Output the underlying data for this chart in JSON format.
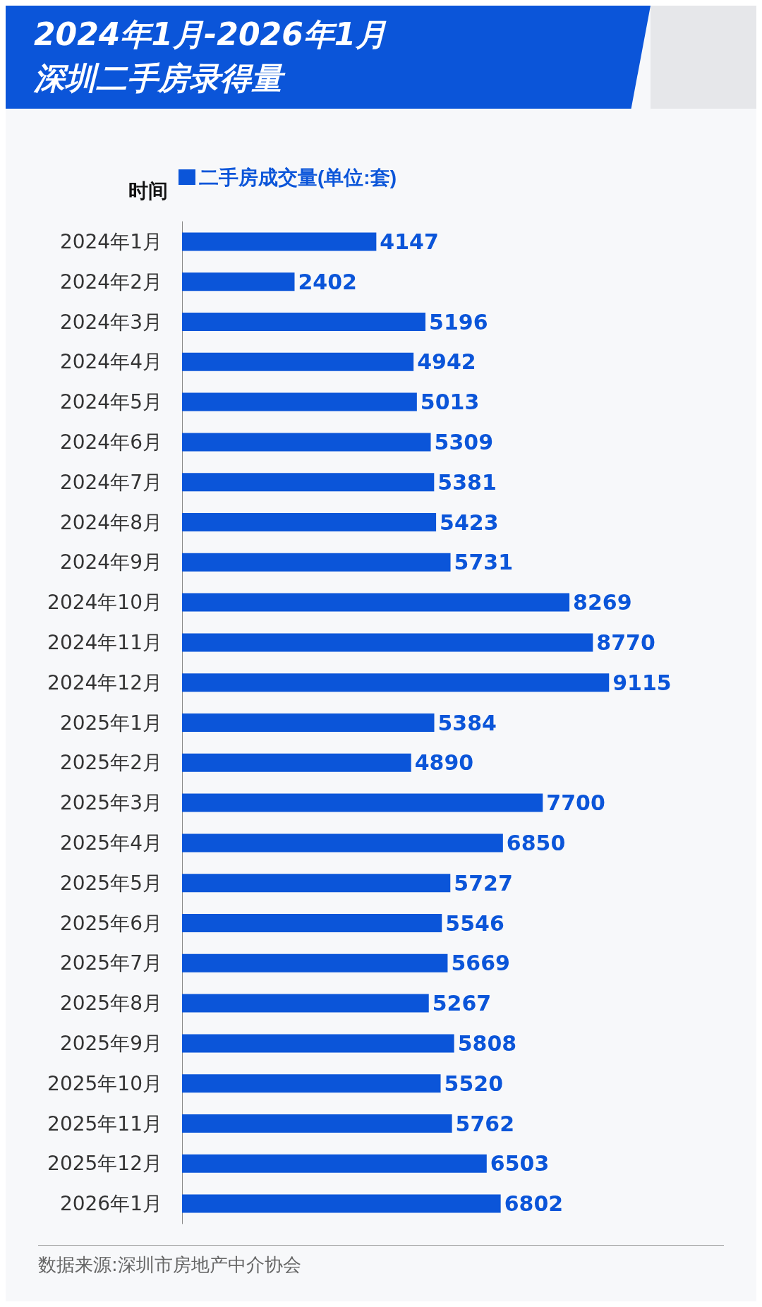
{
  "chart_data": {
    "type": "bar",
    "orientation": "horizontal",
    "title": "2024年1月-2026年1月",
    "subtitle": "深圳二手房录得量",
    "ylabel": "时间",
    "categories": [
      "2024年1月",
      "2024年2月",
      "2024年3月",
      "2024年4月",
      "2024年5月",
      "2024年6月",
      "2024年7月",
      "2024年8月",
      "2024年9月",
      "2024年10月",
      "2024年11月",
      "2024年12月",
      "2025年1月",
      "2025年2月",
      "2025年3月",
      "2025年4月",
      "2025年5月",
      "2025年6月",
      "2025年7月",
      "2025年8月",
      "2025年9月",
      "2025年10月",
      "2025年11月",
      "2025年12月",
      "2026年1月"
    ],
    "series": [
      {
        "name": "二手房成交量(单位:套)",
        "color": "#0b55d9",
        "values": [
          4147,
          2402,
          5196,
          4942,
          5013,
          5309,
          5381,
          5423,
          5731,
          8269,
          8770,
          9115,
          5384,
          4890,
          7700,
          6850,
          5727,
          5546,
          5669,
          5267,
          5808,
          5520,
          5762,
          6503,
          6802
        ]
      }
    ],
    "data_labels": true,
    "legend": "top left",
    "tick_labels": "y",
    "annotations": [
      "数据来源:深圳市房地产中介协会"
    ]
  }
}
